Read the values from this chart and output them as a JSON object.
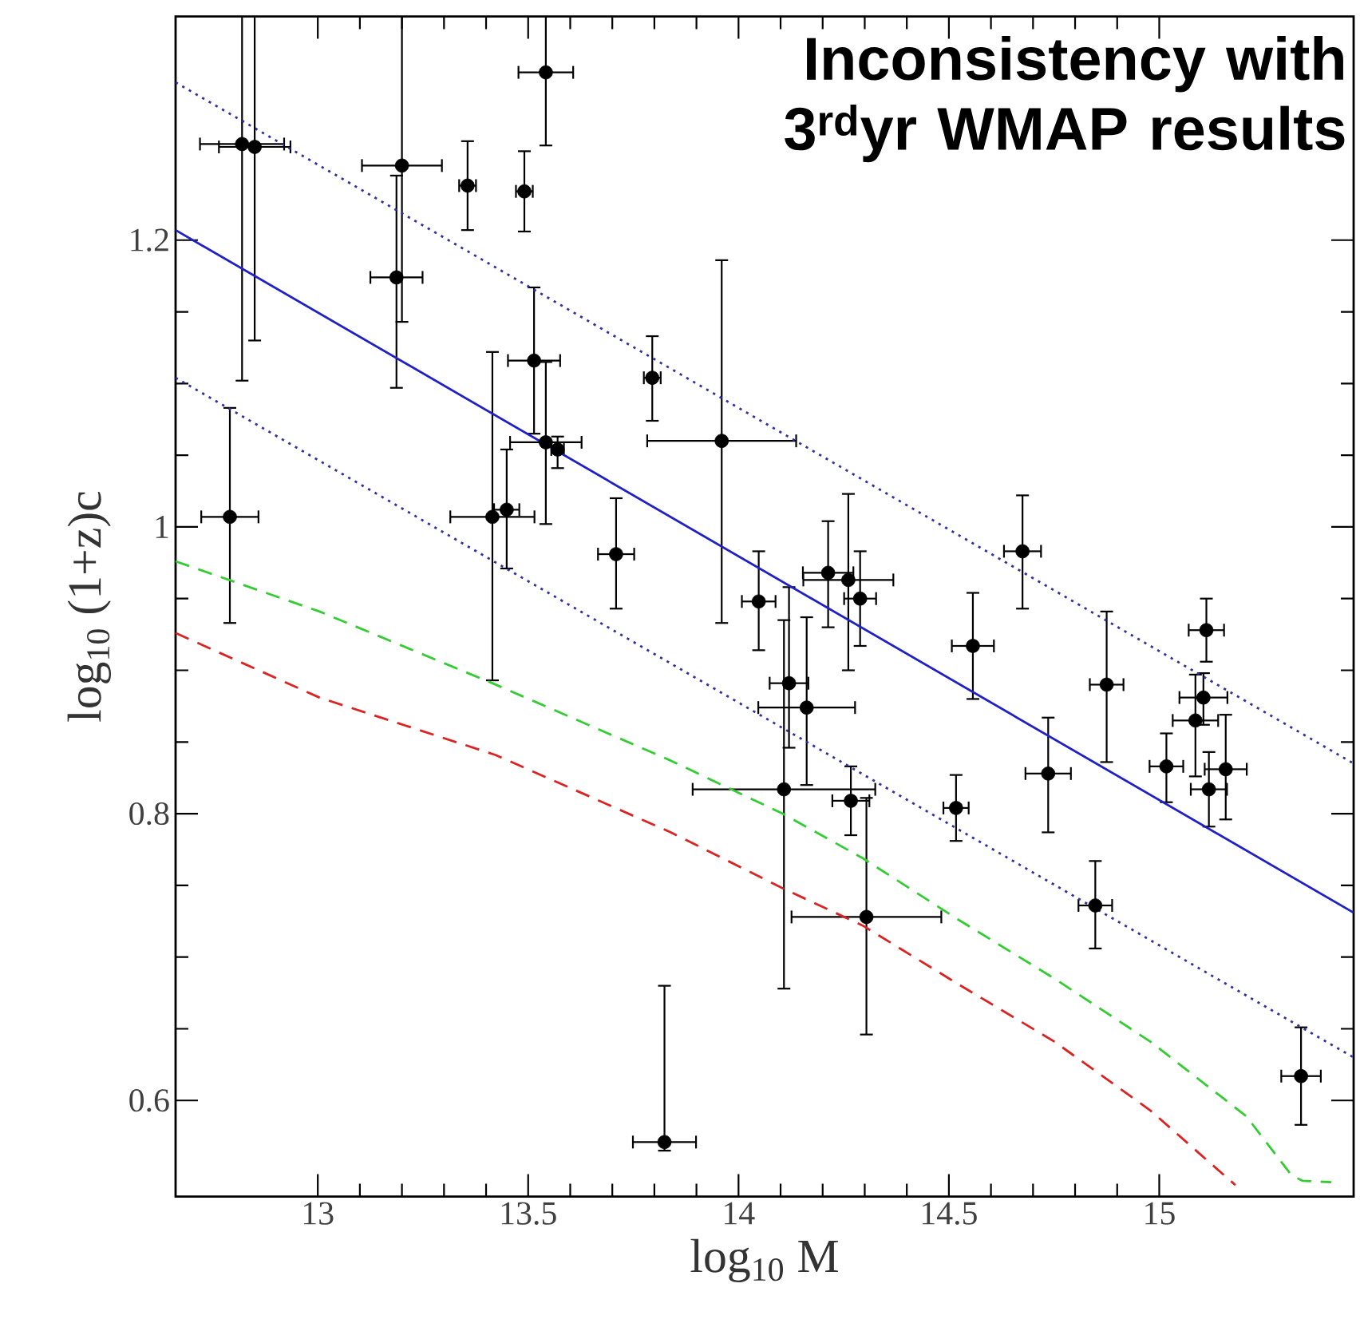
{
  "chart_data": {
    "type": "scatter",
    "xlabel": "log$_{10}$ M",
    "ylabel": "log$_{10}$ (1+z)c",
    "annotations": [
      "**Inconsistency with 3$^{rd}$yr WMAP results**"
    ],
    "xlim": [
      12.662,
      15.462
    ],
    "ylim": [
      0.533,
      1.356
    ],
    "xticks": [
      13,
      13.5,
      14,
      14.5,
      15
    ],
    "yticks": [
      0.6,
      0.8,
      1,
      1.2
    ],
    "grid": false,
    "series": [
      {
        "type": "scatter",
        "color": "#000000",
        "marker": "circle",
        "x": [
          12.82,
          12.85,
          13.2,
          13.356,
          13.491,
          13.542,
          13.187,
          13.514,
          13.542,
          13.57,
          13.415,
          13.449,
          12.791,
          13.709,
          13.795,
          13.96,
          14.675,
          15.112,
          14.048,
          14.213,
          14.261,
          14.289,
          14.557,
          14.12,
          14.162,
          14.108,
          14.267,
          14.304,
          14.517,
          14.736,
          14.875,
          14.848,
          15.017,
          15.105,
          15.086,
          15.158,
          15.118,
          15.337,
          13.824
        ],
        "values": [
          1.267,
          1.265,
          1.252,
          1.238,
          1.234,
          1.317,
          1.174,
          1.116,
          1.059,
          1.054,
          1.007,
          1.012,
          1.007,
          0.981,
          1.104,
          1.06,
          0.983,
          0.928,
          0.948,
          0.968,
          0.963,
          0.95,
          0.917,
          0.891,
          0.874,
          0.817,
          0.809,
          0.728,
          0.804,
          0.828,
          0.89,
          0.736,
          0.833,
          0.881,
          0.865,
          0.831,
          0.817,
          0.617,
          0.571
        ],
        "xerrors": [
          0.1,
          0.085,
          0.095,
          0.02,
          0.02,
          0.065,
          0.062,
          0.062,
          0.085,
          0.015,
          0.1,
          0.03,
          0.068,
          0.043,
          0.02,
          0.177,
          0.044,
          0.042,
          0.04,
          0.06,
          0.107,
          0.038,
          0.05,
          0.046,
          0.115,
          0.217,
          0.044,
          0.178,
          0.03,
          0.054,
          0.04,
          0.04,
          0.04,
          0.057,
          0.054,
          0.05,
          0.043,
          0.047,
          0.075
        ],
        "errors": [
          [
            1.102,
            1.356
          ],
          [
            1.13,
            1.356
          ],
          [
            1.143,
            1.356
          ],
          [
            1.207,
            1.269
          ],
          [
            1.206,
            1.262
          ],
          [
            1.266,
            1.356
          ],
          [
            1.097,
            1.245
          ],
          [
            1.065,
            1.167
          ],
          [
            1.002,
            1.115
          ],
          [
            1.041,
            1.063
          ],
          [
            0.893,
            1.122
          ],
          [
            0.971,
            1.054
          ],
          [
            0.933,
            1.083
          ],
          [
            0.943,
            1.02
          ],
          [
            1.074,
            1.133
          ],
          [
            0.933,
            1.186
          ],
          [
            0.943,
            1.022
          ],
          [
            0.906,
            0.95
          ],
          [
            0.914,
            0.983
          ],
          [
            0.93,
            1.004
          ],
          [
            0.9,
            1.023
          ],
          [
            0.917,
            0.983
          ],
          [
            0.88,
            0.954
          ],
          [
            0.846,
            0.958
          ],
          [
            0.82,
            0.937
          ],
          [
            0.678,
            0.935
          ],
          [
            0.785,
            0.833
          ],
          [
            0.646,
            0.811
          ],
          [
            0.781,
            0.827
          ],
          [
            0.787,
            0.867
          ],
          [
            0.836,
            0.941
          ],
          [
            0.706,
            0.767
          ],
          [
            0.808,
            0.856
          ],
          [
            0.862,
            0.898
          ],
          [
            0.826,
            0.897
          ],
          [
            0.796,
            0.869
          ],
          [
            0.791,
            0.843
          ],
          [
            0.583,
            0.651
          ],
          [
            0.565,
            0.68
          ]
        ]
      },
      {
        "type": "line",
        "color": "#2020c8",
        "line_style": "solid",
        "x": [
          12.662,
          15.462
        ],
        "values": [
          1.207,
          0.731
        ]
      },
      {
        "type": "line",
        "color": "#3030a0",
        "line_style": "dotted",
        "x": [
          12.662,
          15.462
        ],
        "values": [
          1.31,
          0.835
        ]
      },
      {
        "type": "line",
        "color": "#3030a0",
        "line_style": "dotted",
        "x": [
          12.662,
          15.462
        ],
        "values": [
          1.104,
          0.63
        ]
      },
      {
        "type": "line",
        "color": "#33cc33",
        "line_style": "dashed",
        "x": [
          12.662,
          13.004,
          13.415,
          13.839,
          14.105,
          14.295,
          14.523,
          14.751,
          14.979,
          15.207,
          15.314,
          15.34,
          15.409
        ],
        "values": [
          0.976,
          0.941,
          0.891,
          0.837,
          0.8,
          0.769,
          0.726,
          0.685,
          0.641,
          0.589,
          0.548,
          0.544,
          0.543
        ]
      },
      {
        "type": "line",
        "color": "#dd2222",
        "line_style": "dashed",
        "x": [
          12.662,
          13.004,
          13.422,
          13.839,
          14.105,
          14.295,
          14.523,
          14.751,
          14.979,
          15.181
        ],
        "values": [
          0.926,
          0.881,
          0.841,
          0.787,
          0.748,
          0.722,
          0.681,
          0.641,
          0.593,
          0.541
        ]
      }
    ]
  }
}
